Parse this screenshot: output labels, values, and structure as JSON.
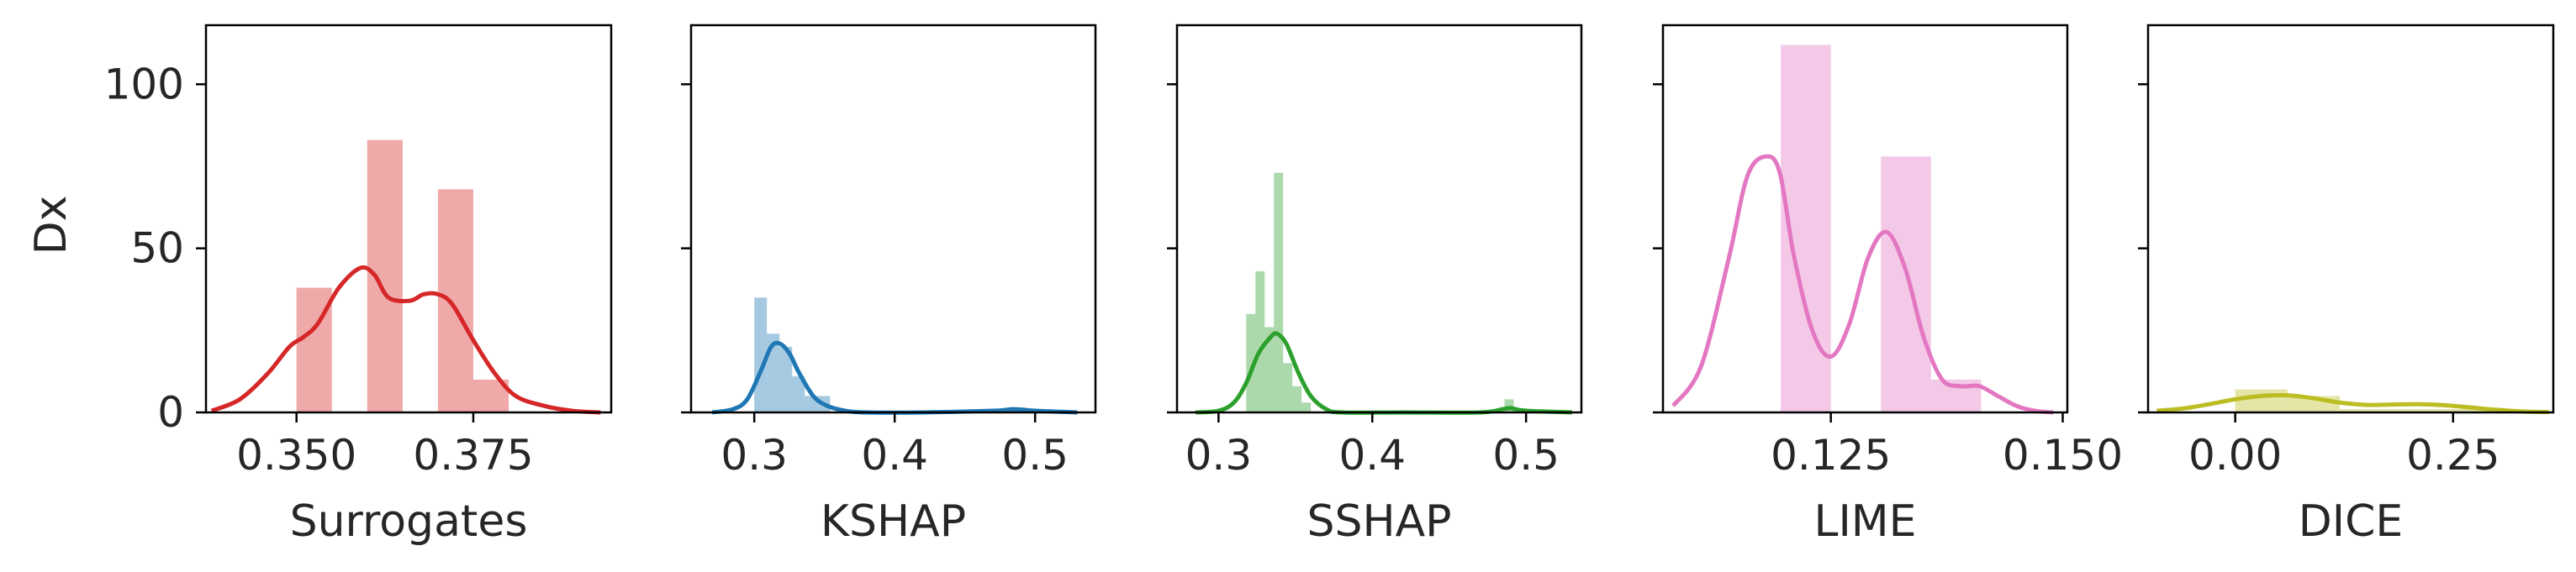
{
  "figure": {
    "ylabel": "Dx"
  },
  "chart_data": [
    {
      "type": "bar",
      "xlabel": "Surrogates",
      "ylabel": "Dx",
      "xlim": [
        0.3372,
        0.3945
      ],
      "ylim": [
        0,
        118
      ],
      "xticks": [
        0.35,
        0.375
      ],
      "xtick_labels": [
        "0.350",
        "0.375"
      ],
      "yticks": [
        0,
        50,
        100
      ],
      "ytick_labels": [
        "0",
        "50",
        "100"
      ],
      "color": "#d62728",
      "bars": [
        {
          "x0": 0.35,
          "x1": 0.355,
          "value": 38
        },
        {
          "x0": 0.36,
          "x1": 0.365,
          "value": 83
        },
        {
          "x0": 0.37,
          "x1": 0.375,
          "value": 68
        },
        {
          "x0": 0.375,
          "x1": 0.38,
          "value": 10
        }
      ],
      "kde": {
        "x": [
          0.338,
          0.342,
          0.346,
          0.349,
          0.351,
          0.353,
          0.356,
          0.359,
          0.361,
          0.363,
          0.366,
          0.368,
          0.37,
          0.372,
          0.375,
          0.378,
          0.381,
          0.385,
          0.389,
          0.393
        ],
        "y": [
          0.5,
          4,
          12,
          20,
          23,
          27,
          38,
          44,
          42,
          35,
          34,
          36,
          36,
          33,
          22,
          12,
          5,
          2,
          0.5,
          0
        ]
      }
    },
    {
      "type": "bar",
      "xlabel": "KSHAP",
      "xlim": [
        0.255,
        0.543
      ],
      "ylim": [
        0,
        118
      ],
      "xticks": [
        0.3,
        0.4,
        0.5
      ],
      "xtick_labels": [
        "0.3",
        "0.4",
        "0.5"
      ],
      "yticks": [
        0,
        50,
        100
      ],
      "color": "#1f77b4",
      "bars": [
        {
          "x0": 0.3,
          "x1": 0.309,
          "value": 35
        },
        {
          "x0": 0.309,
          "x1": 0.318,
          "value": 24
        },
        {
          "x0": 0.318,
          "x1": 0.327,
          "value": 20
        },
        {
          "x0": 0.327,
          "x1": 0.336,
          "value": 11
        },
        {
          "x0": 0.336,
          "x1": 0.345,
          "value": 5
        },
        {
          "x0": 0.345,
          "x1": 0.354,
          "value": 5
        },
        {
          "x0": 0.478,
          "x1": 0.496,
          "value": 1
        }
      ],
      "kde": {
        "x": [
          0.27,
          0.285,
          0.295,
          0.305,
          0.312,
          0.318,
          0.325,
          0.332,
          0.342,
          0.352,
          0.365,
          0.38,
          0.42,
          0.47,
          0.485,
          0.5,
          0.53
        ],
        "y": [
          0,
          1,
          4,
          13,
          20,
          21,
          18,
          12,
          5,
          2,
          0.5,
          0,
          0,
          0.5,
          1,
          0.5,
          0
        ]
      }
    },
    {
      "type": "bar",
      "xlabel": "SSHAP",
      "xlim": [
        0.273,
        0.536
      ],
      "ylim": [
        0,
        118
      ],
      "xticks": [
        0.3,
        0.4,
        0.5
      ],
      "xtick_labels": [
        "0.3",
        "0.4",
        "0.5"
      ],
      "yticks": [
        0,
        50,
        100
      ],
      "color": "#2ca02c",
      "bars": [
        {
          "x0": 0.318,
          "x1": 0.324,
          "value": 30
        },
        {
          "x0": 0.324,
          "x1": 0.33,
          "value": 43
        },
        {
          "x0": 0.33,
          "x1": 0.336,
          "value": 26
        },
        {
          "x0": 0.336,
          "x1": 0.342,
          "value": 73
        },
        {
          "x0": 0.342,
          "x1": 0.348,
          "value": 15
        },
        {
          "x0": 0.348,
          "x1": 0.354,
          "value": 8
        },
        {
          "x0": 0.354,
          "x1": 0.36,
          "value": 3
        },
        {
          "x0": 0.486,
          "x1": 0.492,
          "value": 4
        }
      ],
      "kde": {
        "x": [
          0.285,
          0.3,
          0.31,
          0.318,
          0.326,
          0.334,
          0.338,
          0.344,
          0.352,
          0.36,
          0.37,
          0.38,
          0.42,
          0.47,
          0.485,
          0.49,
          0.5,
          0.53
        ],
        "y": [
          0,
          0.5,
          3,
          9,
          18,
          23,
          24,
          21,
          12,
          5,
          1,
          0,
          0,
          0,
          1,
          1.3,
          0.5,
          0
        ]
      }
    },
    {
      "type": "bar",
      "xlabel": "LIME",
      "xlim": [
        0.1069,
        0.1505
      ],
      "ylim": [
        0,
        118
      ],
      "xticks": [
        0.125,
        0.15
      ],
      "xtick_labels": [
        "0.125",
        "0.150"
      ],
      "yticks": [
        0,
        50,
        100
      ],
      "color": "#e377c2",
      "bars": [
        {
          "x0": 0.1196,
          "x1": 0.125,
          "value": 112
        },
        {
          "x0": 0.1304,
          "x1": 0.1358,
          "value": 78
        },
        {
          "x0": 0.1358,
          "x1": 0.1412,
          "value": 10
        }
      ],
      "kde": {
        "x": [
          0.108,
          0.111,
          0.114,
          0.116,
          0.118,
          0.1195,
          0.121,
          0.123,
          0.125,
          0.127,
          0.129,
          0.131,
          0.133,
          0.135,
          0.137,
          0.139,
          0.141,
          0.143,
          0.145,
          0.147,
          0.149
        ],
        "y": [
          2,
          14,
          47,
          72,
          78,
          73,
          48,
          25,
          17,
          27,
          47,
          55,
          44,
          23,
          10,
          8,
          8,
          5,
          2,
          0.5,
          0
        ]
      }
    },
    {
      "type": "bar",
      "xlabel": "DICE",
      "xlim": [
        -0.1,
        0.365
      ],
      "ylim": [
        0,
        118
      ],
      "xticks": [
        0.0,
        0.25
      ],
      "xtick_labels": [
        "0.00",
        "0.25"
      ],
      "yticks": [
        0,
        50,
        100
      ],
      "color": "#bcbd22",
      "bars": [
        {
          "x0": 0.0,
          "x1": 0.06,
          "value": 7
        },
        {
          "x0": 0.06,
          "x1": 0.12,
          "value": 5
        },
        {
          "x0": 0.12,
          "x1": 0.18,
          "value": 1
        },
        {
          "x0": 0.18,
          "x1": 0.24,
          "value": 1
        },
        {
          "x0": 0.24,
          "x1": 0.3,
          "value": 1
        }
      ],
      "kde": {
        "x": [
          -0.09,
          -0.06,
          -0.03,
          0.0,
          0.03,
          0.06,
          0.09,
          0.12,
          0.15,
          0.18,
          0.21,
          0.24,
          0.27,
          0.3,
          0.33,
          0.36
        ],
        "y": [
          0.5,
          1.2,
          2.5,
          4,
          5,
          5.2,
          4.3,
          3,
          2.3,
          2.4,
          2.5,
          2.2,
          1.5,
          0.8,
          0.3,
          0.1
        ]
      }
    }
  ]
}
